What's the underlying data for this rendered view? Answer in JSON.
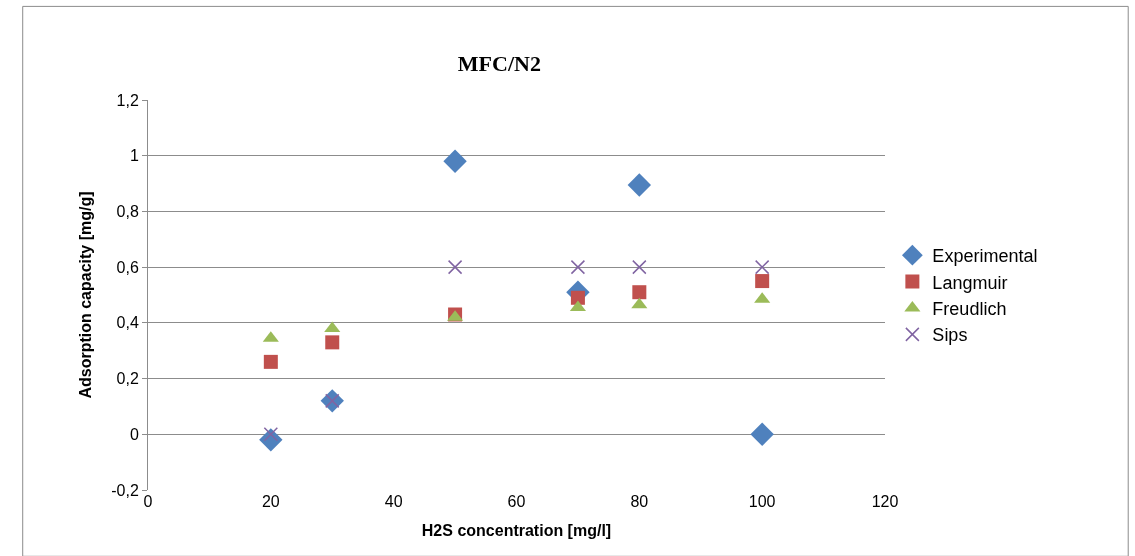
{
  "chart_data": {
    "type": "scatter",
    "title": "MFC/N2",
    "xlabel": "H2S concentration [mg/l]",
    "ylabel": "Adsorption capacity [mg/g]",
    "x": [
      20,
      30,
      50,
      70,
      80,
      100
    ],
    "series": [
      {
        "name": "Experimental",
        "color": "#4f81bd",
        "marker": "diamond",
        "values": [
          -0.02,
          0.12,
          0.98,
          0.51,
          0.895,
          0
        ]
      },
      {
        "name": "Langmuir",
        "color": "#c0504d",
        "marker": "square",
        "values": [
          0.26,
          0.33,
          0.43,
          0.49,
          0.51,
          0.55
        ]
      },
      {
        "name": "Freudlich",
        "color": "#9bbb59",
        "marker": "triangle",
        "values": [
          0.345,
          0.38,
          0.42,
          0.455,
          0.465,
          0.485
        ]
      },
      {
        "name": "Sips",
        "color": "#8064a2",
        "marker": "cross",
        "values": [
          0,
          0.12,
          0.6,
          0.6,
          0.6,
          0.6
        ]
      }
    ],
    "xlim": [
      0,
      120
    ],
    "xticks": [
      0,
      20,
      40,
      60,
      80,
      100,
      120
    ],
    "ylim": [
      -0.2,
      1.2
    ],
    "yticks": [
      {
        "value": -0.2,
        "label": "-0,2"
      },
      0,
      {
        "value": 0.2,
        "label": "0,2"
      },
      {
        "value": 0.4,
        "label": "0,4"
      },
      {
        "value": 0.6,
        "label": "0,6"
      },
      {
        "value": 0.8,
        "label": "0,8"
      },
      1,
      {
        "value": 1.2,
        "label": "1,2"
      }
    ],
    "grid": "y",
    "legend": "right"
  }
}
